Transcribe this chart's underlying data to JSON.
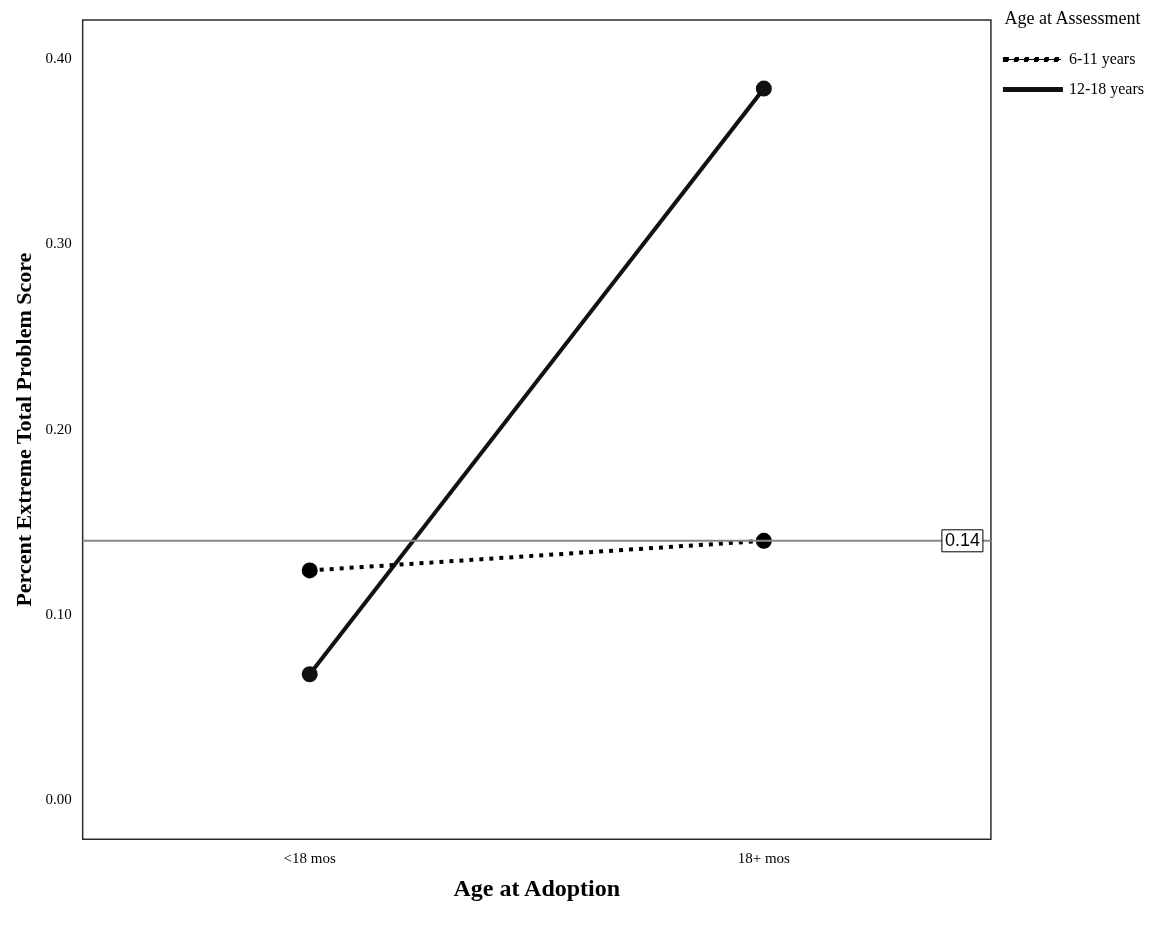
{
  "chart_data": {
    "type": "line",
    "xlabel": "Age at Adoption",
    "ylabel": "Percent Extreme Total Problem Score",
    "legend_title": "Age at Assessment",
    "categories": [
      "<18 mos",
      "18+ mos"
    ],
    "series": [
      {
        "name": "6-11 years",
        "color": "#000000",
        "values": [
          0.124,
          0.14
        ],
        "line_style": "dotted"
      },
      {
        "name": "12-18 years",
        "color": "#111111",
        "values": [
          0.068,
          0.384
        ],
        "line_style": "solid"
      }
    ],
    "ylim": [
      -0.021,
      0.421
    ],
    "yticks": [
      {
        "value": 0,
        "label": "0.00"
      },
      {
        "value": 0.1,
        "label": "0.10"
      },
      {
        "value": 0.2,
        "label": "0.20"
      },
      {
        "value": 0.3,
        "label": "0.30"
      },
      {
        "value": 0.4,
        "label": "0.40"
      }
    ],
    "ref_lines": [
      {
        "axis": "y",
        "value": 0.14,
        "label": "0.14",
        "color": "#888888"
      }
    ],
    "grid": false,
    "legend": "top right",
    "marker": "circle"
  }
}
